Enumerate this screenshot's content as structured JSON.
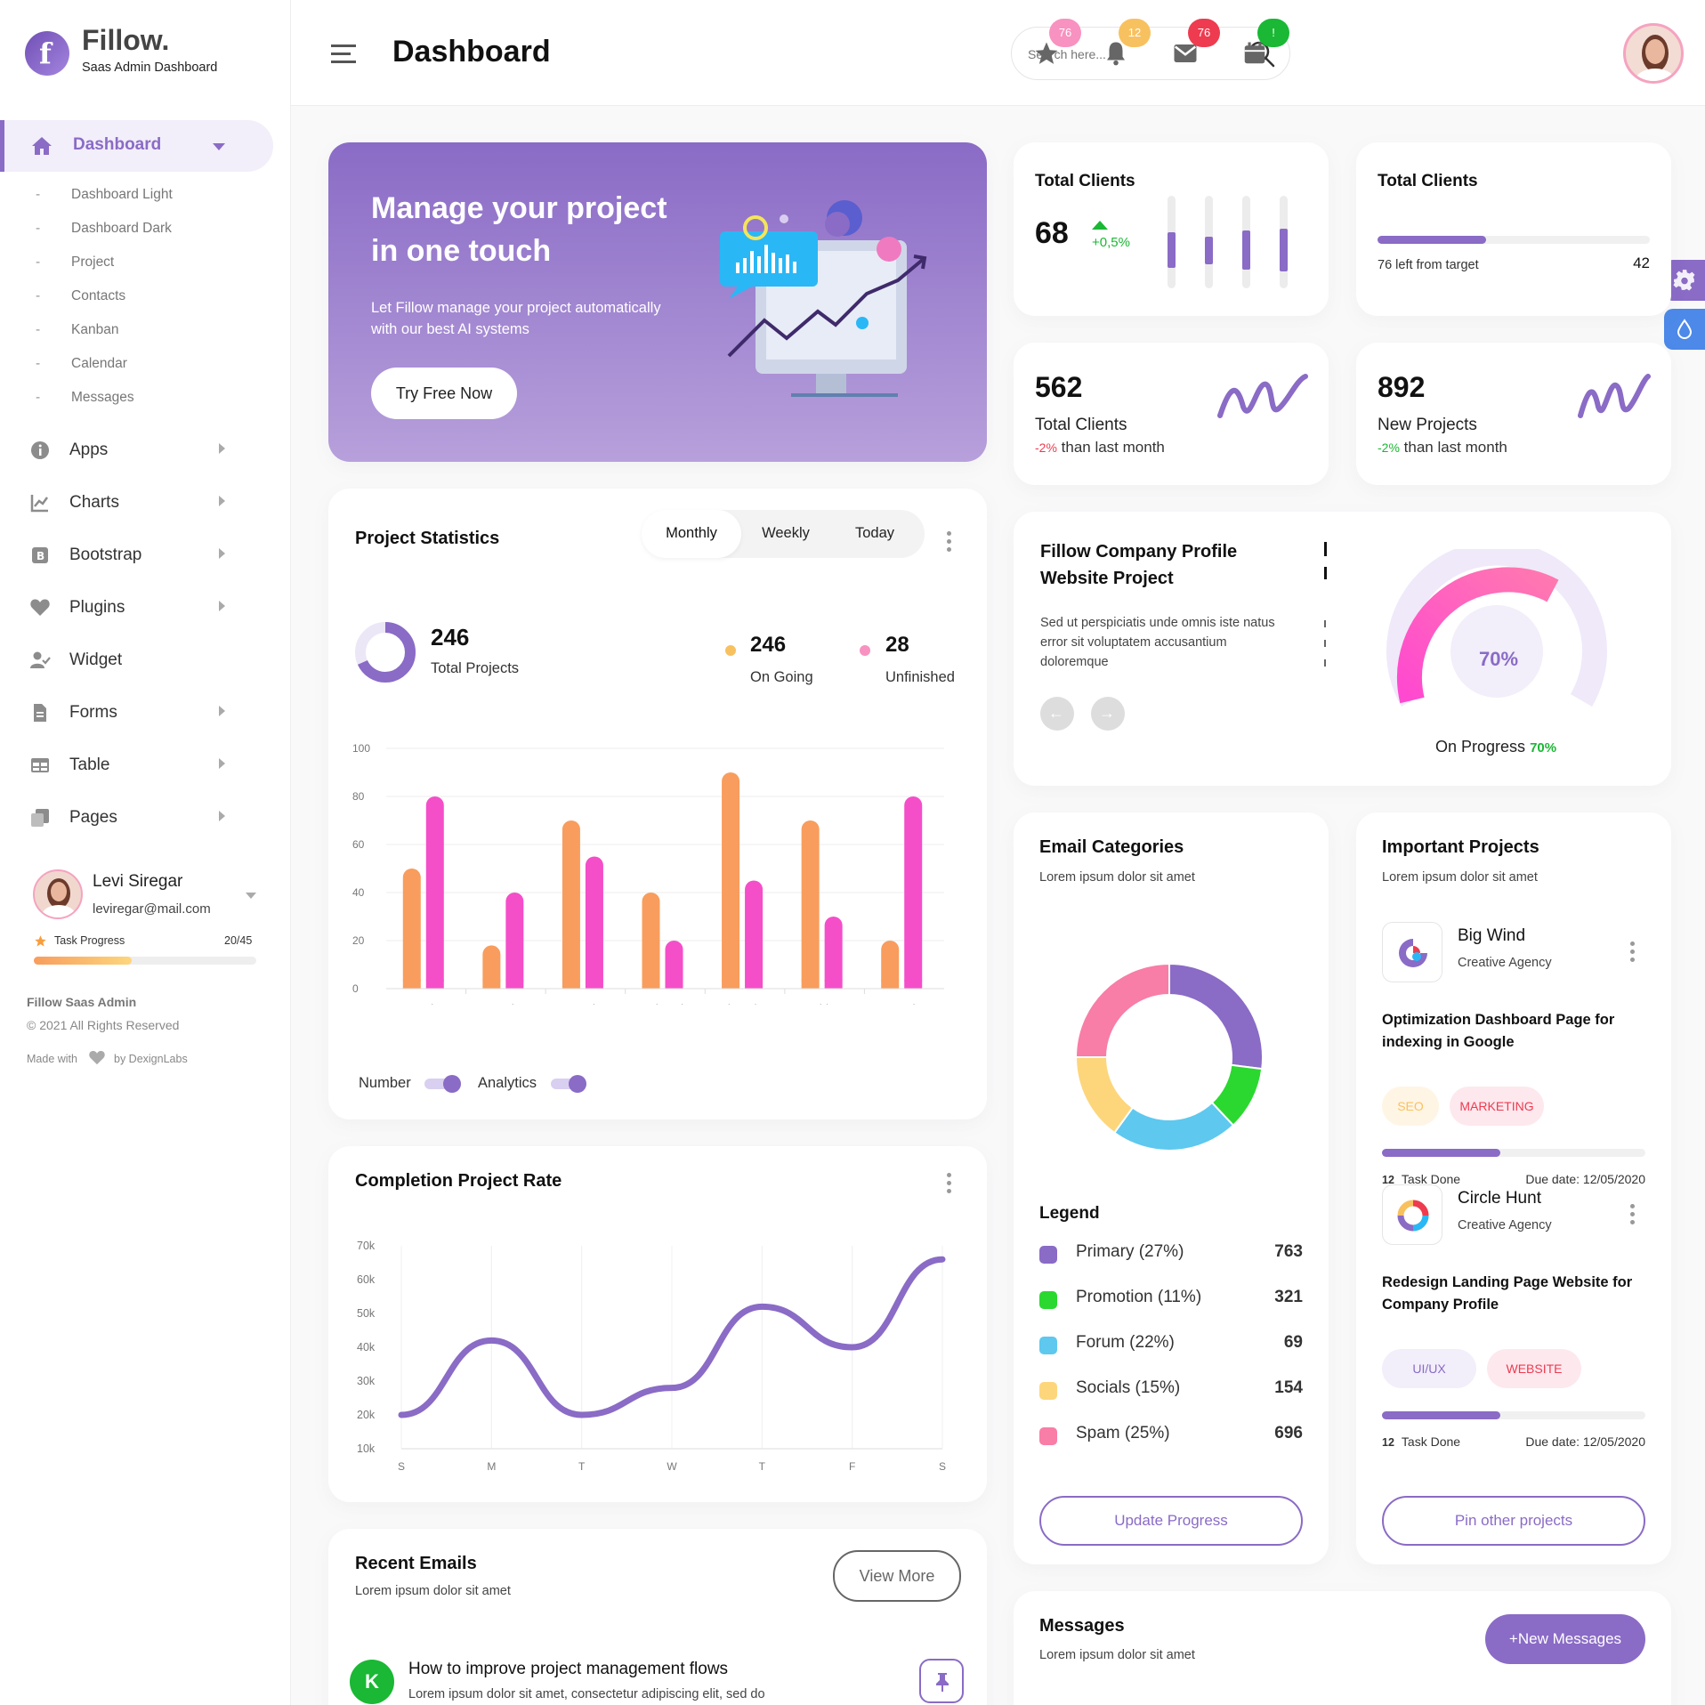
{
  "brand": {
    "name": "Fillow.",
    "tagline": "Saas Admin Dashboard",
    "logo_letter": "f"
  },
  "header": {
    "title": "Dashboard",
    "search_placeholder": "Search here...",
    "badges": [
      {
        "icon": "star-icon",
        "count": "76",
        "color": "#f892c0"
      },
      {
        "icon": "bell-icon",
        "count": "12",
        "color": "#f8c15f"
      },
      {
        "icon": "mail-icon",
        "count": "76",
        "color": "#ee3b4f"
      },
      {
        "icon": "calendar-icon",
        "count": "!",
        "color": "#1ab834"
      }
    ]
  },
  "sidebar": {
    "active": {
      "label": "Dashboard"
    },
    "sub_items": [
      "Dashboard Light",
      "Dashboard Dark",
      "Project",
      "Contacts",
      "Kanban",
      "Calendar",
      "Messages"
    ],
    "menu": [
      {
        "label": "Apps",
        "icon": "info-icon",
        "arrow": true
      },
      {
        "label": "Charts",
        "icon": "chart-icon",
        "arrow": true
      },
      {
        "label": "Bootstrap",
        "icon": "bootstrap-icon",
        "arrow": true
      },
      {
        "label": "Plugins",
        "icon": "heart-icon",
        "arrow": true
      },
      {
        "label": "Widget",
        "icon": "user-check-icon",
        "arrow": false
      },
      {
        "label": "Forms",
        "icon": "file-icon",
        "arrow": true
      },
      {
        "label": "Table",
        "icon": "table-icon",
        "arrow": true
      },
      {
        "label": "Pages",
        "icon": "pages-icon",
        "arrow": true
      }
    ],
    "user": {
      "name": "Levi Siregar",
      "email": "leviregar@mail.com",
      "task_label": "Task Progress",
      "task_count": "20/45",
      "progress": 0.44
    },
    "footer": {
      "title": "Fillow Saas Admin",
      "copyright": "© 2021 All Rights Reserved",
      "made_with": "Made with",
      "by": "by DexignLabs"
    }
  },
  "hero": {
    "title_line1": "Manage your project",
    "title_line2": "in one touch",
    "desc_line1": "Let Fillow manage your project automatically",
    "desc_line2": "with our best AI systems",
    "button": "Try Free Now"
  },
  "stats": {
    "clients_a": {
      "title": "Total Clients",
      "value": "68",
      "change": "+0,5%",
      "bars": [
        0.45,
        0.35,
        0.5,
        0.55
      ]
    },
    "clients_b": {
      "title": "Total Clients",
      "left_text": "76 left from target",
      "value": "42",
      "progress": 0.4
    },
    "clients_c": {
      "value": "562",
      "label": "Total Clients",
      "change": "-2%",
      "suffix": "than last month"
    },
    "projects": {
      "value": "892",
      "label": "New Projects",
      "change": "-2%",
      "suffix": "than last month"
    }
  },
  "company": {
    "title_line1": "Fillow Company Profile",
    "title_line2": "Website Project",
    "desc_line1": "Sed ut perspiciatis unde omnis iste natus",
    "desc_line2": "error sit voluptatem accusantium",
    "desc_line3": "doloremque",
    "gauge_value": "70%",
    "progress_label": "On Progress",
    "progress_value": "70%"
  },
  "project_stats": {
    "title": "Project Statistics",
    "tabs": [
      "Monthly",
      "Weekly",
      "Today"
    ],
    "total": "246",
    "total_label": "Total Projects",
    "ongoing": "246",
    "ongoing_label": "On Going",
    "unfinished": "28",
    "unfinished_label": "Unfinished",
    "toggles": [
      {
        "label": "Number"
      },
      {
        "label": "Analytics"
      }
    ]
  },
  "completion": {
    "title": "Completion Project Rate"
  },
  "email_categories": {
    "title": "Email Categories",
    "subtitle": "Lorem ipsum dolor sit amet",
    "legend_title": "Legend",
    "legend": [
      {
        "label": "Primary (27%)",
        "value": "763",
        "color": "#8a6bc6"
      },
      {
        "label": "Promotion (11%)",
        "value": "321",
        "color": "#2bd830"
      },
      {
        "label": "Forum (22%)",
        "value": "69",
        "color": "#5ec8ef"
      },
      {
        "label": "Socials (15%)",
        "value": "154",
        "color": "#fdd67c"
      },
      {
        "label": "Spam (25%)",
        "value": "696",
        "color": "#f87da7"
      }
    ],
    "button": "Update Progress"
  },
  "important": {
    "title": "Important Projects",
    "subtitle": "Lorem ipsum dolor sit amet",
    "projects": [
      {
        "name": "Big Wind",
        "company": "Creative Agency",
        "task_line1": "Optimization Dashboard Page for",
        "task_line2": "indexing in Google",
        "tags": [
          "SEO",
          "MARKETING"
        ],
        "done_count": "12",
        "done_label": "Task Done",
        "due": "Due date: 12/05/2020",
        "progress": 0.45
      },
      {
        "name": "Circle Hunt",
        "company": "Creative Agency",
        "task_line1": "Redesign Landing Page Website for",
        "task_line2": "Company Profile",
        "tags": [
          "UI/UX",
          "WEBSITE"
        ],
        "done_count": "12",
        "done_label": "Task Done",
        "due": "Due date: 12/05/2020",
        "progress": 0.45
      }
    ],
    "button": "Pin other projects"
  },
  "recent_emails": {
    "title": "Recent Emails",
    "subtitle": "Lorem ipsum dolor sit amet",
    "button": "View More",
    "item": {
      "avatar": "K",
      "subject": "How to improve project management flows",
      "preview": "Lorem ipsum dolor sit amet, consectetur adipiscing elit, sed do"
    }
  },
  "messages": {
    "title": "Messages",
    "subtitle": "Lorem ipsum dolor sit amet",
    "button": "+New Messages"
  },
  "chart_data": [
    {
      "type": "bar",
      "categories": [
        "Sunday",
        "Monday",
        "Tuesday",
        "Wednesday",
        "Thursday",
        "Friday",
        "Saturday"
      ],
      "series": [
        {
          "values": [
            50,
            18,
            70,
            40,
            90,
            70,
            20
          ],
          "color": "#f89d5d"
        },
        {
          "values": [
            80,
            40,
            55,
            20,
            45,
            30,
            80
          ],
          "color": "#f54ec9"
        }
      ],
      "ylim": [
        0,
        100
      ],
      "yticks": [
        0,
        20,
        40,
        60,
        80,
        100
      ]
    },
    {
      "type": "line",
      "categories": [
        "S",
        "M",
        "T",
        "W",
        "T",
        "F",
        "S"
      ],
      "values": [
        20,
        42,
        20,
        28,
        52,
        40,
        66
      ],
      "ylim": [
        10,
        70
      ],
      "yticks": [
        "10k",
        "20k",
        "30k",
        "40k",
        "50k",
        "60k",
        "70k"
      ]
    },
    {
      "type": "pie",
      "labels": [
        "Primary",
        "Promotion",
        "Forum",
        "Socials",
        "Spam"
      ],
      "values": [
        27,
        11,
        22,
        15,
        25
      ]
    }
  ]
}
